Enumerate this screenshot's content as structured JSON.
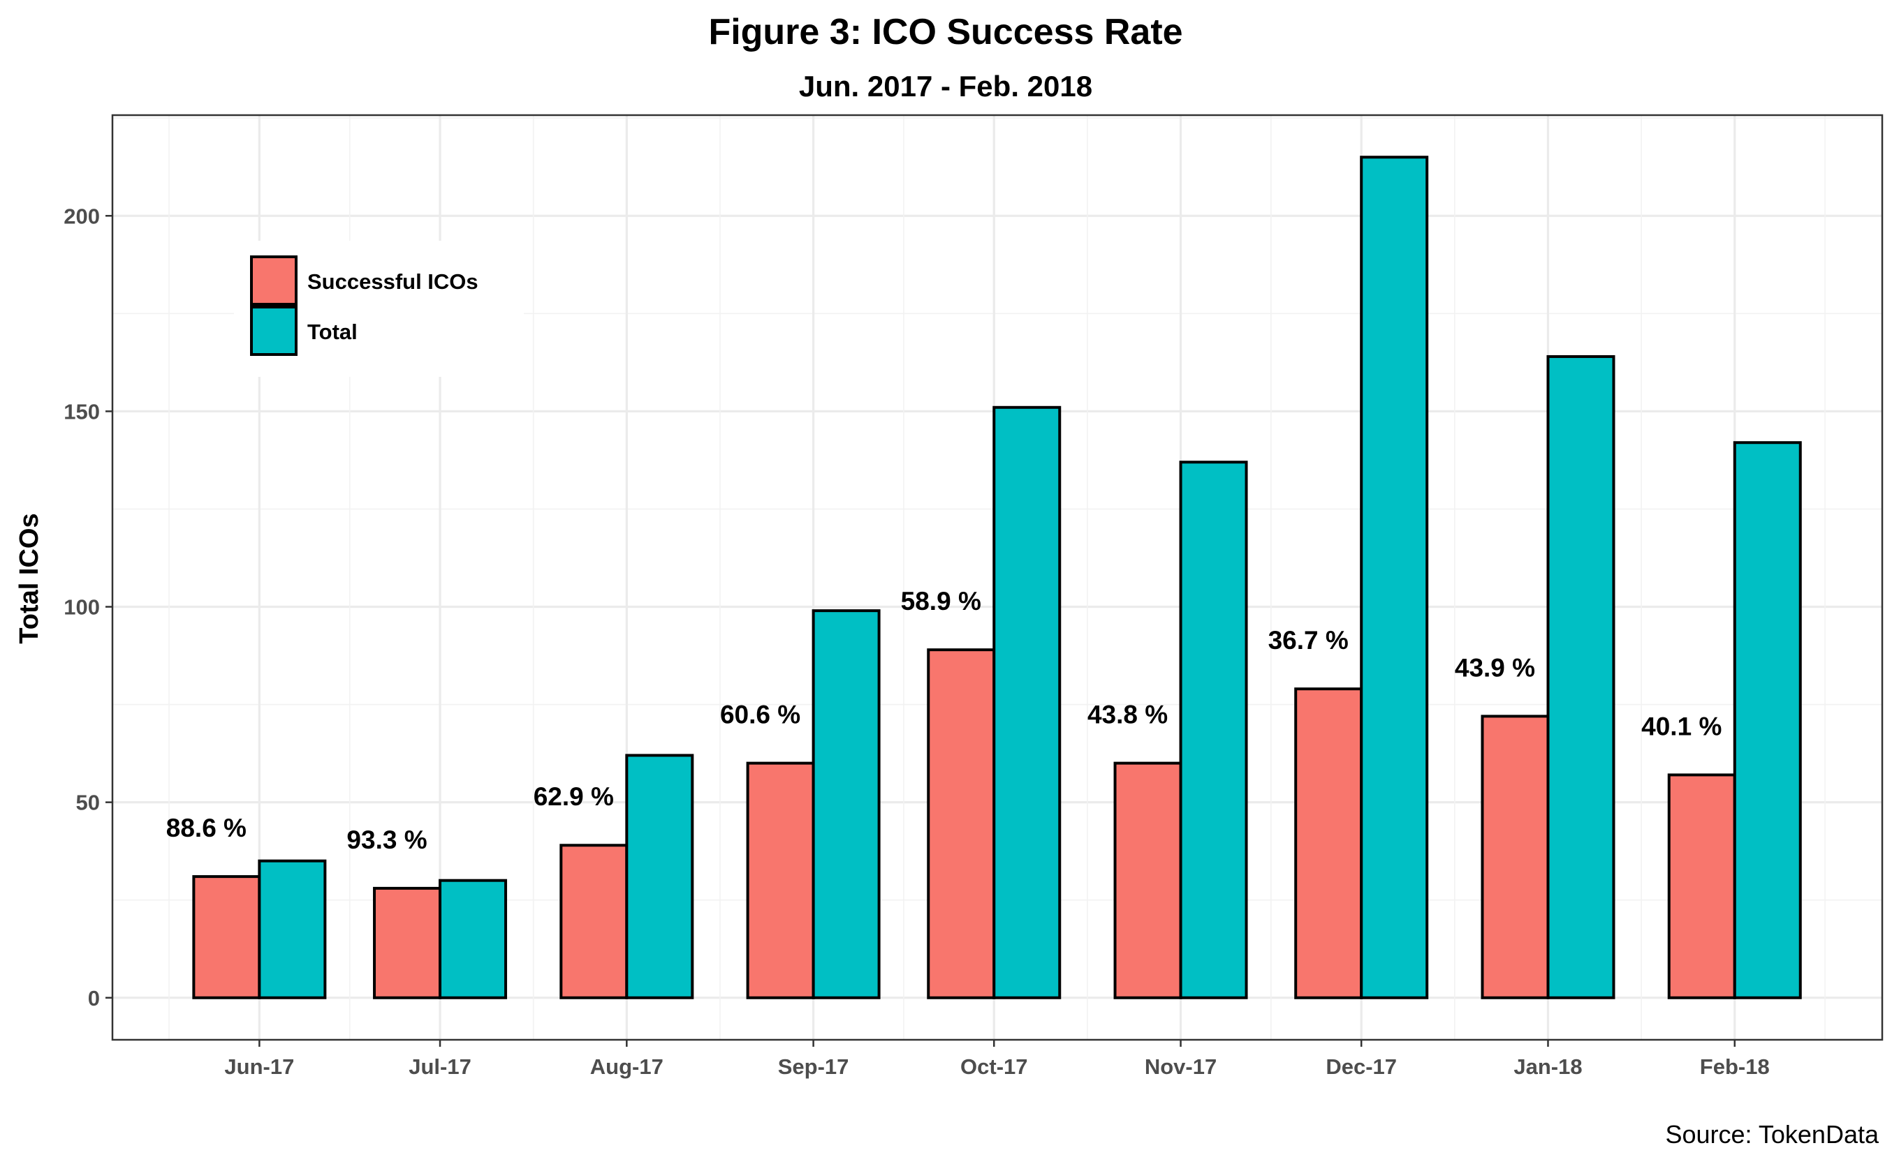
{
  "chart_data": {
    "type": "bar",
    "title": "Figure 3: ICO Success Rate",
    "subtitle": "Jun. 2017 - Feb. 2018",
    "xlabel": "",
    "ylabel": "Total ICOs",
    "caption": "Source: TokenData",
    "categories": [
      "Jun-17",
      "Jul-17",
      "Aug-17",
      "Sep-17",
      "Oct-17",
      "Nov-17",
      "Dec-17",
      "Jan-18",
      "Feb-18"
    ],
    "category_day_offsets": [
      0,
      30,
      61,
      92,
      122,
      153,
      183,
      214,
      245
    ],
    "series": [
      {
        "name": "Successful ICOs",
        "color": "#F8766D",
        "values": [
          31,
          28,
          39,
          60,
          89,
          60,
          79,
          72,
          57
        ]
      },
      {
        "name": "Total",
        "color": "#00BFC4",
        "values": [
          35,
          30,
          62,
          99,
          151,
          137,
          215,
          164,
          142
        ]
      }
    ],
    "annotations": [
      "88.6 %",
      "93.3 %",
      "62.9 %",
      "60.6 %",
      "58.9 %",
      "43.8 %",
      "36.7 %",
      "43.9 %",
      "40.1 %"
    ],
    "yticks": [
      0,
      50,
      100,
      150,
      200
    ],
    "ylim": [
      -10.75,
      225.75
    ],
    "xlim_days": [
      -24.4,
      269.5
    ],
    "grid": true,
    "legend": {
      "position": "top-left",
      "entries": [
        "Successful ICOs",
        "Total"
      ]
    }
  }
}
